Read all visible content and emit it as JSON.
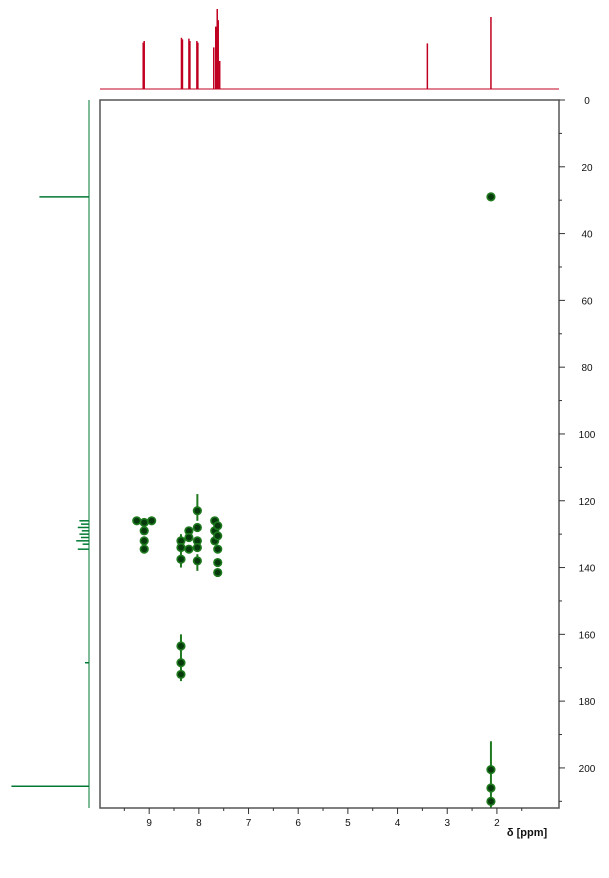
{
  "chart_data": {
    "type": "scatter",
    "title": "",
    "xlabel": "δ [ppm]",
    "ylabel": "",
    "x_axis": {
      "reversed": true,
      "range": [
        9.99,
        0.75
      ],
      "ticks": [
        9,
        8,
        7,
        6,
        5,
        4,
        3,
        2
      ]
    },
    "y_axis": {
      "reversed": true,
      "range": [
        0,
        212
      ],
      "ticks": [
        0,
        20,
        40,
        60,
        80,
        100,
        120,
        140,
        160,
        180,
        200
      ],
      "side": "right"
    },
    "grid": false,
    "legend": "none",
    "colors": {
      "frame": "#555555",
      "proton_projection": "#c00020",
      "carbon_projection": "#007a33",
      "peak_fill": "#063a0c",
      "peak_stroke": "#1f7a1f"
    },
    "peaks": [
      {
        "x": 2.12,
        "y": 29
      },
      {
        "x": 9.25,
        "y": 126
      },
      {
        "x": 8.95,
        "y": 126
      },
      {
        "x": 9.1,
        "y": 126.5
      },
      {
        "x": 9.1,
        "y": 129
      },
      {
        "x": 9.1,
        "y": 132
      },
      {
        "x": 9.1,
        "y": 134.5
      },
      {
        "x": 8.36,
        "y": 132
      },
      {
        "x": 8.36,
        "y": 134
      },
      {
        "x": 8.36,
        "y": 137.5
      },
      {
        "x": 8.2,
        "y": 129
      },
      {
        "x": 8.2,
        "y": 131
      },
      {
        "x": 8.2,
        "y": 134.5
      },
      {
        "x": 8.03,
        "y": 123
      },
      {
        "x": 8.03,
        "y": 128
      },
      {
        "x": 8.03,
        "y": 132
      },
      {
        "x": 8.03,
        "y": 134
      },
      {
        "x": 8.03,
        "y": 138
      },
      {
        "x": 7.68,
        "y": 126
      },
      {
        "x": 7.68,
        "y": 129
      },
      {
        "x": 7.68,
        "y": 132
      },
      {
        "x": 7.62,
        "y": 127.5
      },
      {
        "x": 7.62,
        "y": 130.5
      },
      {
        "x": 7.62,
        "y": 134.5
      },
      {
        "x": 7.62,
        "y": 138.5
      },
      {
        "x": 7.62,
        "y": 141.5
      },
      {
        "x": 8.36,
        "y": 163.5
      },
      {
        "x": 8.36,
        "y": 168.5
      },
      {
        "x": 8.36,
        "y": 172
      },
      {
        "x": 2.12,
        "y": 200.5
      },
      {
        "x": 2.12,
        "y": 206
      },
      {
        "x": 2.12,
        "y": 210
      }
    ],
    "streaks": [
      {
        "x": 8.03,
        "y1": 118,
        "y2": 126
      },
      {
        "x": 8.36,
        "y1": 130,
        "y2": 140
      },
      {
        "x": 8.03,
        "y1": 136,
        "y2": 141
      },
      {
        "x": 8.36,
        "y1": 160,
        "y2": 174
      },
      {
        "x": 2.12,
        "y1": 192,
        "y2": 212
      }
    ],
    "proton_spectrum": {
      "baseline": 0,
      "peaks": [
        {
          "ppm": 9.1,
          "height": 0.6
        },
        {
          "ppm": 9.12,
          "height": 0.58
        },
        {
          "ppm": 8.35,
          "height": 0.64
        },
        {
          "ppm": 8.33,
          "height": 0.62
        },
        {
          "ppm": 8.2,
          "height": 0.63
        },
        {
          "ppm": 8.18,
          "height": 0.6
        },
        {
          "ppm": 8.04,
          "height": 0.6
        },
        {
          "ppm": 8.02,
          "height": 0.58
        },
        {
          "ppm": 7.7,
          "height": 0.52
        },
        {
          "ppm": 7.66,
          "height": 0.78
        },
        {
          "ppm": 7.63,
          "height": 1.0
        },
        {
          "ppm": 7.61,
          "height": 0.86
        },
        {
          "ppm": 7.58,
          "height": 0.35
        },
        {
          "ppm": 3.4,
          "height": 0.57
        },
        {
          "ppm": 2.12,
          "height": 0.9
        }
      ]
    },
    "carbon_spectrum": {
      "peaks": [
        {
          "ppm": 29,
          "height": 0.62
        },
        {
          "ppm": 126,
          "height": 0.12
        },
        {
          "ppm": 127,
          "height": 0.1
        },
        {
          "ppm": 128,
          "height": 0.14
        },
        {
          "ppm": 129,
          "height": 0.09
        },
        {
          "ppm": 130,
          "height": 0.12
        },
        {
          "ppm": 131,
          "height": 0.1
        },
        {
          "ppm": 132,
          "height": 0.16
        },
        {
          "ppm": 133,
          "height": 0.08
        },
        {
          "ppm": 134.5,
          "height": 0.14
        },
        {
          "ppm": 168.5,
          "height": 0.05
        },
        {
          "ppm": 205.5,
          "height": 0.97
        }
      ]
    }
  }
}
